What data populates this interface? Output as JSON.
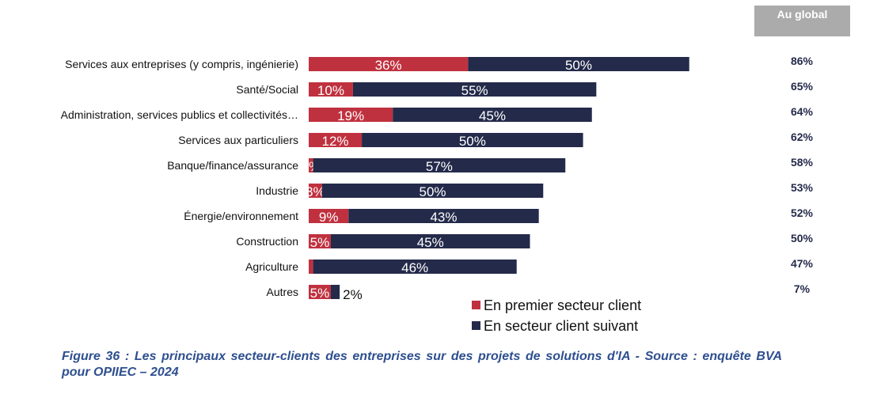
{
  "chart_data": {
    "type": "bar",
    "orientation": "horizontal",
    "stacked": true,
    "categories": [
      "Services aux entreprises (y compris, ingénierie)",
      "Santé/Social",
      "Administration, services publics et collectivités…",
      "Services aux particuliers",
      "Banque/finance/assurance",
      "Industrie",
      "Énergie/environnement",
      "Construction",
      "Agriculture",
      "Autres"
    ],
    "series": [
      {
        "name": "En premier secteur client",
        "color": "#c0313f",
        "values": [
          36,
          10,
          19,
          12,
          1,
          3,
          9,
          5,
          1,
          5
        ],
        "labels": [
          "36%",
          "10%",
          "19%",
          "12%",
          "1%",
          "3%",
          "9%",
          "5%",
          null,
          "5%"
        ]
      },
      {
        "name": "En secteur client suivant",
        "color": "#242a4a",
        "values": [
          50,
          55,
          45,
          50,
          57,
          50,
          43,
          45,
          46,
          2
        ],
        "labels": [
          "50%",
          "55%",
          "45%",
          "50%",
          "57%",
          "50%",
          "43%",
          "45%",
          "46%",
          "2%"
        ]
      }
    ],
    "global_header": "Au global",
    "global_values": [
      "86%",
      "65%",
      "64%",
      "62%",
      "58%",
      "53%",
      "52%",
      "50%",
      "47%",
      "7%"
    ],
    "axis_visible": false,
    "grid": false,
    "legend_position": "bottom-center"
  },
  "caption": "Figure 36 : Les principaux secteur-clients des entreprises sur des projets de solutions d'IA - Source : enquête BVA pour OPIIEC – 2024"
}
